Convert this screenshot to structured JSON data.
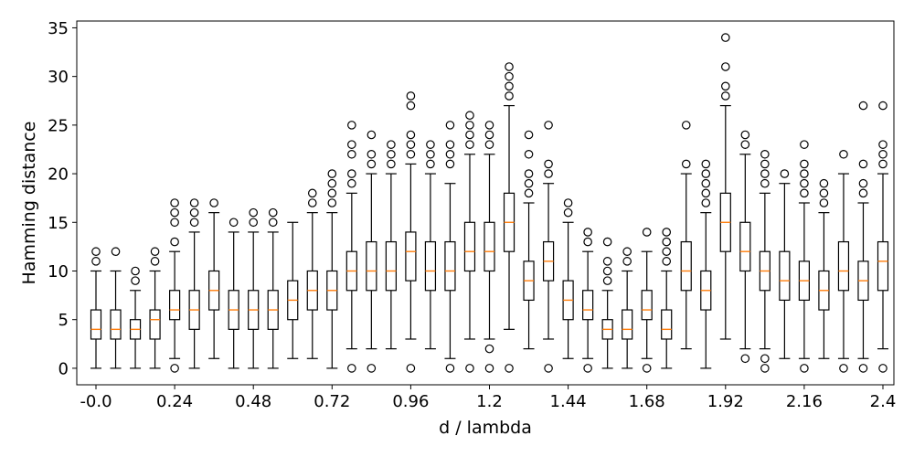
{
  "chart_data": {
    "type": "box",
    "xlabel": "d / lambda",
    "ylabel": "Hamming distance",
    "ylim": [
      -1.7,
      35.7
    ],
    "y_ticks": [
      0,
      5,
      10,
      15,
      20,
      25,
      30,
      35
    ],
    "x_ticks": [
      {
        "label": "-0.0",
        "index": 0
      },
      {
        "label": "0.24",
        "index": 4
      },
      {
        "label": "0.48",
        "index": 8
      },
      {
        "label": "0.72",
        "index": 12
      },
      {
        "label": "0.96",
        "index": 16
      },
      {
        "label": "1.2",
        "index": 20
      },
      {
        "label": "1.44",
        "index": 24
      },
      {
        "label": "1.68",
        "index": 28
      },
      {
        "label": "1.92",
        "index": 32
      },
      {
        "label": "2.16",
        "index": 36
      },
      {
        "label": "2.4",
        "index": 40
      }
    ],
    "grid": false,
    "median_color": "#ff7f0e",
    "box_color": "#000000",
    "boxes": [
      {
        "x": 0.0,
        "whislo": 0,
        "q1": 3,
        "med": 4,
        "q3": 6,
        "whishi": 10,
        "fliers": [
          11,
          12
        ]
      },
      {
        "x": 0.06,
        "whislo": 0,
        "q1": 3,
        "med": 4,
        "q3": 6,
        "whishi": 10,
        "fliers": [
          12
        ]
      },
      {
        "x": 0.12,
        "whislo": 0,
        "q1": 3,
        "med": 4,
        "q3": 5,
        "whishi": 8,
        "fliers": [
          9,
          10
        ]
      },
      {
        "x": 0.18,
        "whislo": 0,
        "q1": 3,
        "med": 5,
        "q3": 6,
        "whishi": 10,
        "fliers": [
          11,
          12
        ]
      },
      {
        "x": 0.24,
        "whislo": 1,
        "q1": 5,
        "med": 6,
        "q3": 8,
        "whishi": 12,
        "fliers": [
          0,
          13,
          15,
          16,
          17
        ]
      },
      {
        "x": 0.3,
        "whislo": 0,
        "q1": 4,
        "med": 6,
        "q3": 8,
        "whishi": 14,
        "fliers": [
          15,
          16,
          17
        ]
      },
      {
        "x": 0.36,
        "whislo": 1,
        "q1": 6,
        "med": 8,
        "q3": 10,
        "whishi": 16,
        "fliers": [
          17
        ]
      },
      {
        "x": 0.42,
        "whislo": 0,
        "q1": 4,
        "med": 6,
        "q3": 8,
        "whishi": 14,
        "fliers": [
          15
        ]
      },
      {
        "x": 0.48,
        "whislo": 0,
        "q1": 4,
        "med": 6,
        "q3": 8,
        "whishi": 14,
        "fliers": [
          15,
          16
        ]
      },
      {
        "x": 0.54,
        "whislo": 0,
        "q1": 4,
        "med": 6,
        "q3": 8,
        "whishi": 14,
        "fliers": [
          15,
          16
        ]
      },
      {
        "x": 0.6,
        "whislo": 1,
        "q1": 5,
        "med": 7,
        "q3": 9,
        "whishi": 15,
        "fliers": []
      },
      {
        "x": 0.66,
        "whislo": 1,
        "q1": 6,
        "med": 8,
        "q3": 10,
        "whishi": 16,
        "fliers": [
          17,
          18
        ]
      },
      {
        "x": 0.72,
        "whislo": 0,
        "q1": 6,
        "med": 8,
        "q3": 10,
        "whishi": 16,
        "fliers": [
          17,
          18,
          19,
          20
        ]
      },
      {
        "x": 0.78,
        "whislo": 2,
        "q1": 8,
        "med": 10,
        "q3": 12,
        "whishi": 18,
        "fliers": [
          0,
          19,
          20,
          22,
          23,
          25
        ]
      },
      {
        "x": 0.84,
        "whislo": 2,
        "q1": 8,
        "med": 10,
        "q3": 13,
        "whishi": 20,
        "fliers": [
          0,
          21,
          22,
          24
        ]
      },
      {
        "x": 0.9,
        "whislo": 2,
        "q1": 8,
        "med": 10,
        "q3": 13,
        "whishi": 20,
        "fliers": [
          21,
          22,
          23
        ]
      },
      {
        "x": 0.96,
        "whislo": 3,
        "q1": 9,
        "med": 12,
        "q3": 14,
        "whishi": 21,
        "fliers": [
          0,
          22,
          23,
          24,
          27,
          28
        ]
      },
      {
        "x": 1.02,
        "whislo": 2,
        "q1": 8,
        "med": 10,
        "q3": 13,
        "whishi": 20,
        "fliers": [
          21,
          22,
          23
        ]
      },
      {
        "x": 1.08,
        "whislo": 1,
        "q1": 8,
        "med": 10,
        "q3": 13,
        "whishi": 19,
        "fliers": [
          0,
          21,
          22,
          23,
          25
        ]
      },
      {
        "x": 1.14,
        "whislo": 3,
        "q1": 10,
        "med": 12,
        "q3": 15,
        "whishi": 22,
        "fliers": [
          0,
          23,
          24,
          25,
          26
        ]
      },
      {
        "x": 1.2,
        "whislo": 3,
        "q1": 10,
        "med": 12,
        "q3": 15,
        "whishi": 22,
        "fliers": [
          0,
          2,
          23,
          24,
          25
        ]
      },
      {
        "x": 1.26,
        "whislo": 4,
        "q1": 12,
        "med": 15,
        "q3": 18,
        "whishi": 27,
        "fliers": [
          0,
          28,
          29,
          30,
          31
        ]
      },
      {
        "x": 1.32,
        "whislo": 2,
        "q1": 7,
        "med": 9,
        "q3": 11,
        "whishi": 17,
        "fliers": [
          18,
          19,
          20,
          22,
          24
        ]
      },
      {
        "x": 1.38,
        "whislo": 3,
        "q1": 9,
        "med": 11,
        "q3": 13,
        "whishi": 19,
        "fliers": [
          0,
          20,
          21,
          25
        ]
      },
      {
        "x": 1.44,
        "whislo": 1,
        "q1": 5,
        "med": 7,
        "q3": 9,
        "whishi": 15,
        "fliers": [
          16,
          17
        ]
      },
      {
        "x": 1.5,
        "whislo": 1,
        "q1": 5,
        "med": 6,
        "q3": 8,
        "whishi": 12,
        "fliers": [
          0,
          13,
          14
        ]
      },
      {
        "x": 1.56,
        "whislo": 0,
        "q1": 3,
        "med": 4,
        "q3": 5,
        "whishi": 8,
        "fliers": [
          9,
          10,
          11,
          13
        ]
      },
      {
        "x": 1.62,
        "whislo": 0,
        "q1": 3,
        "med": 4,
        "q3": 6,
        "whishi": 10,
        "fliers": [
          11,
          12
        ]
      },
      {
        "x": 1.68,
        "whislo": 1,
        "q1": 5,
        "med": 6,
        "q3": 8,
        "whishi": 12,
        "fliers": [
          0,
          14
        ]
      },
      {
        "x": 1.74,
        "whislo": 0,
        "q1": 3,
        "med": 4,
        "q3": 6,
        "whishi": 10,
        "fliers": [
          11,
          12,
          13,
          14
        ]
      },
      {
        "x": 1.8,
        "whislo": 2,
        "q1": 8,
        "med": 10,
        "q3": 13,
        "whishi": 20,
        "fliers": [
          21,
          25
        ]
      },
      {
        "x": 1.86,
        "whislo": 0,
        "q1": 6,
        "med": 8,
        "q3": 10,
        "whishi": 16,
        "fliers": [
          17,
          18,
          19,
          20,
          21
        ]
      },
      {
        "x": 1.92,
        "whislo": 3,
        "q1": 12,
        "med": 15,
        "q3": 18,
        "whishi": 27,
        "fliers": [
          28,
          29,
          31,
          34
        ]
      },
      {
        "x": 1.98,
        "whislo": 2,
        "q1": 10,
        "med": 12,
        "q3": 15,
        "whishi": 22,
        "fliers": [
          1,
          23,
          24
        ]
      },
      {
        "x": 2.04,
        "whislo": 2,
        "q1": 8,
        "med": 10,
        "q3": 12,
        "whishi": 18,
        "fliers": [
          0,
          1,
          19,
          20,
          21,
          22
        ]
      },
      {
        "x": 2.1,
        "whislo": 1,
        "q1": 7,
        "med": 9,
        "q3": 12,
        "whishi": 19,
        "fliers": [
          20
        ]
      },
      {
        "x": 2.16,
        "whislo": 1,
        "q1": 7,
        "med": 9,
        "q3": 11,
        "whishi": 17,
        "fliers": [
          0,
          18,
          19,
          20,
          21,
          23
        ]
      },
      {
        "x": 2.22,
        "whislo": 1,
        "q1": 6,
        "med": 8,
        "q3": 10,
        "whishi": 16,
        "fliers": [
          17,
          18,
          19
        ]
      },
      {
        "x": 2.28,
        "whislo": 1,
        "q1": 8,
        "med": 10,
        "q3": 13,
        "whishi": 20,
        "fliers": [
          0,
          22
        ]
      },
      {
        "x": 2.34,
        "whislo": 1,
        "q1": 7,
        "med": 9,
        "q3": 11,
        "whishi": 17,
        "fliers": [
          0,
          18,
          19,
          21,
          27
        ]
      },
      {
        "x": 2.4,
        "whislo": 2,
        "q1": 8,
        "med": 11,
        "q3": 13,
        "whishi": 20,
        "fliers": [
          0,
          21,
          22,
          23,
          27
        ]
      }
    ]
  }
}
